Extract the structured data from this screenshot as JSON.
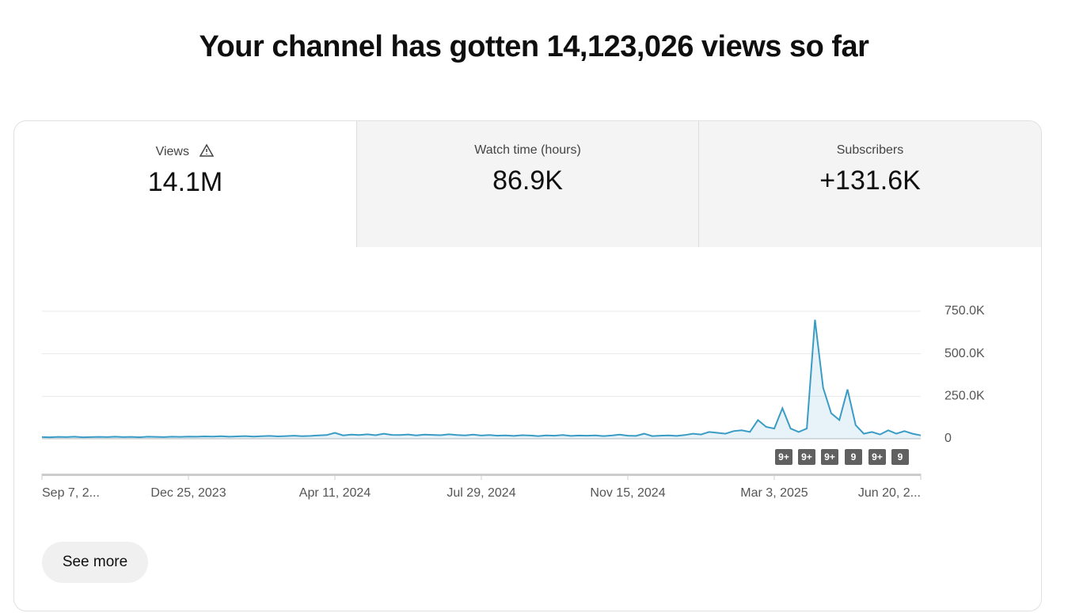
{
  "header": {
    "title": "Your channel has gotten 14,123,026 views so far"
  },
  "metrics": [
    {
      "label": "Views",
      "value": "14.1M"
    },
    {
      "label": "Watch time (hours)",
      "value": "86.9K"
    },
    {
      "label": "Subscribers",
      "value": "+131.6K"
    }
  ],
  "chart_data": {
    "type": "line",
    "color": "#3a9cc4",
    "grid": true,
    "ylim": [
      0,
      750000
    ],
    "yticks": [
      {
        "value": 0,
        "label": "0"
      },
      {
        "value": 250000,
        "label": "250.0K"
      },
      {
        "value": 500000,
        "label": "500.0K"
      },
      {
        "value": 750000,
        "label": "750.0K"
      }
    ],
    "categories": [
      "Sep 7, 2...",
      null,
      null,
      null,
      null,
      null,
      null,
      null,
      null,
      null,
      null,
      null,
      null,
      null,
      null,
      null,
      null,
      null,
      "Dec 25, 2023",
      null,
      null,
      null,
      null,
      null,
      null,
      null,
      null,
      null,
      null,
      null,
      null,
      null,
      null,
      null,
      null,
      null,
      "Apr 11, 2024",
      null,
      null,
      null,
      null,
      null,
      null,
      null,
      null,
      null,
      null,
      null,
      null,
      null,
      null,
      null,
      null,
      null,
      "Jul 29, 2024",
      null,
      null,
      null,
      null,
      null,
      null,
      null,
      null,
      null,
      null,
      null,
      null,
      null,
      null,
      null,
      null,
      null,
      "Nov 15, 2024",
      null,
      null,
      null,
      null,
      null,
      null,
      null,
      null,
      null,
      null,
      null,
      null,
      null,
      null,
      null,
      null,
      null,
      "Mar 3, 2025",
      null,
      null,
      null,
      null,
      null,
      null,
      null,
      null,
      null,
      null,
      null,
      null,
      null,
      null,
      null,
      null,
      null,
      "Jun 20, 2..."
    ],
    "values": [
      10000,
      9000,
      11000,
      10000,
      12000,
      9000,
      10000,
      11000,
      10000,
      12000,
      10000,
      11000,
      9000,
      12000,
      11000,
      10000,
      12000,
      11000,
      13000,
      12000,
      14000,
      13000,
      15000,
      12000,
      14000,
      16000,
      13000,
      15000,
      17000,
      14000,
      16000,
      18000,
      15000,
      17000,
      20000,
      22000,
      35000,
      20000,
      24000,
      22000,
      26000,
      21000,
      30000,
      23000,
      22000,
      25000,
      20000,
      24000,
      23000,
      21000,
      26000,
      22000,
      20000,
      24000,
      19000,
      22000,
      18000,
      20000,
      17000,
      21000,
      19000,
      16000,
      20000,
      18000,
      22000,
      17000,
      19000,
      18000,
      20000,
      16000,
      19000,
      24000,
      18000,
      17000,
      30000,
      16000,
      18000,
      20000,
      17000,
      22000,
      30000,
      25000,
      40000,
      35000,
      30000,
      45000,
      50000,
      40000,
      110000,
      70000,
      60000,
      180000,
      60000,
      40000,
      60000,
      700000,
      300000,
      150000,
      110000,
      290000,
      80000,
      30000,
      40000,
      25000,
      50000,
      30000,
      45000,
      30000,
      20000
    ],
    "annotations": [
      "9+",
      "9+",
      "9+",
      "9",
      "9+",
      "9"
    ]
  },
  "button": {
    "label": "See more"
  }
}
